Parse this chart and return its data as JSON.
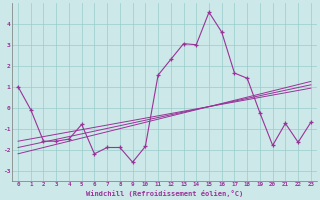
{
  "x": [
    0,
    1,
    2,
    3,
    4,
    5,
    6,
    7,
    8,
    9,
    10,
    11,
    12,
    13,
    14,
    15,
    16,
    17,
    18,
    19,
    20,
    21,
    22,
    23
  ],
  "y_main": [
    1.0,
    -0.1,
    -1.6,
    -1.6,
    -1.5,
    -0.8,
    -2.2,
    -1.9,
    -1.9,
    -2.6,
    -1.85,
    1.55,
    2.3,
    3.05,
    3.0,
    4.55,
    3.6,
    1.65,
    1.4,
    -0.25,
    -1.8,
    -0.75,
    -1.65,
    -0.7
  ],
  "y_trend1": [
    -2.2,
    -2.05,
    -1.9,
    -1.75,
    -1.6,
    -1.45,
    -1.3,
    -1.15,
    -1.0,
    -0.85,
    -0.7,
    -0.55,
    -0.4,
    -0.25,
    -0.1,
    0.05,
    0.2,
    0.35,
    0.5,
    0.65,
    0.8,
    0.95,
    1.1,
    1.25
  ],
  "y_trend2": [
    -1.9,
    -1.77,
    -1.64,
    -1.51,
    -1.38,
    -1.25,
    -1.12,
    -0.99,
    -0.86,
    -0.73,
    -0.6,
    -0.47,
    -0.34,
    -0.21,
    -0.08,
    0.05,
    0.18,
    0.31,
    0.44,
    0.57,
    0.7,
    0.83,
    0.96,
    1.09
  ],
  "y_trend3": [
    -1.6,
    -1.49,
    -1.38,
    -1.27,
    -1.16,
    -1.05,
    -0.94,
    -0.83,
    -0.72,
    -0.61,
    -0.5,
    -0.39,
    -0.28,
    -0.17,
    -0.06,
    0.05,
    0.16,
    0.27,
    0.38,
    0.49,
    0.6,
    0.71,
    0.82,
    0.93
  ],
  "background_color": "#cce8e8",
  "grid_color": "#99cccc",
  "line_color": "#993399",
  "marker": "+",
  "xlabel": "Windchill (Refroidissement éolien,°C)",
  "ylim": [
    -3.5,
    5.0
  ],
  "xlim": [
    -0.5,
    23.5
  ],
  "yticks": [
    -3,
    -2,
    -1,
    0,
    1,
    2,
    3,
    4
  ],
  "xticks": [
    0,
    1,
    2,
    3,
    4,
    5,
    6,
    7,
    8,
    9,
    10,
    11,
    12,
    13,
    14,
    15,
    16,
    17,
    18,
    19,
    20,
    21,
    22,
    23
  ]
}
